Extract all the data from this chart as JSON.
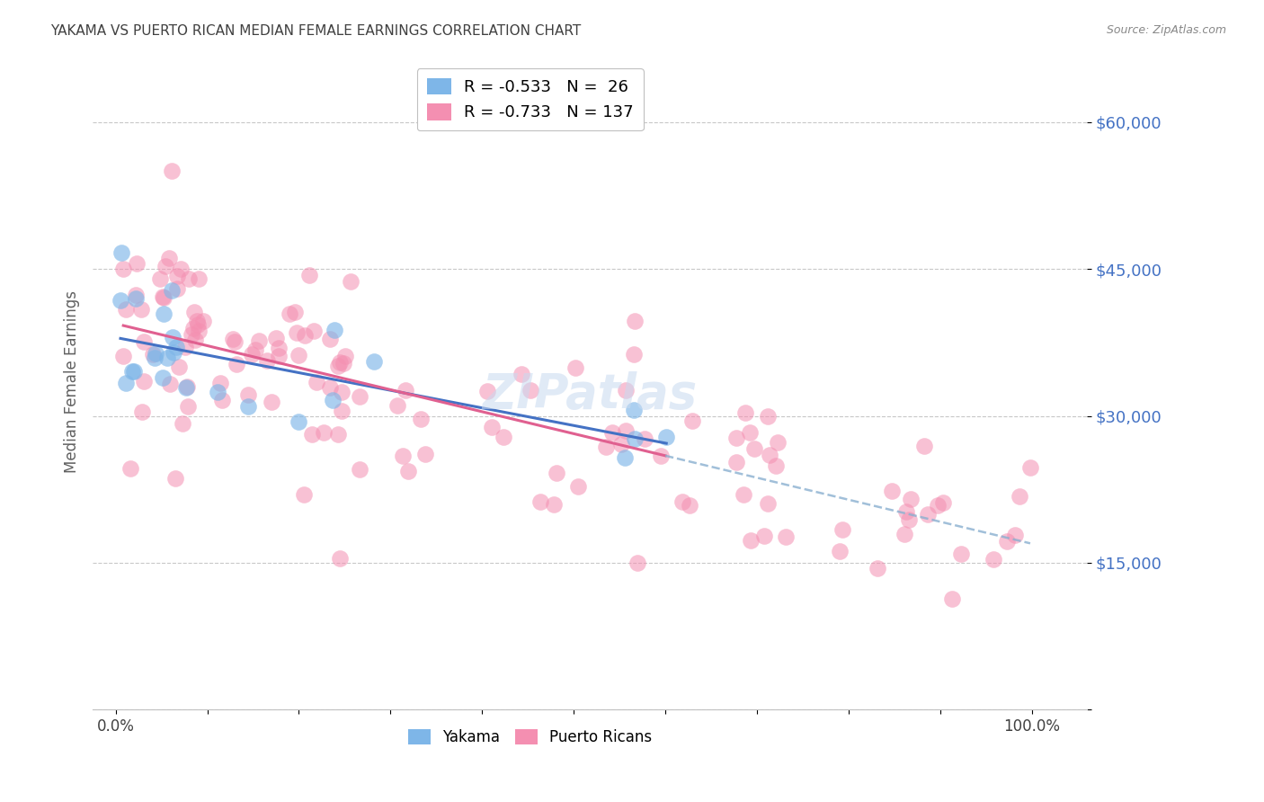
{
  "title": "YAKAMA VS PUERTO RICAN MEDIAN FEMALE EARNINGS CORRELATION CHART",
  "source": "Source: ZipAtlas.com",
  "ylabel": "Median Female Earnings",
  "yticks": [
    0,
    15000,
    30000,
    45000,
    60000
  ],
  "ytick_labels": [
    "",
    "$15,000",
    "$30,000",
    "$45,000",
    "$60,000"
  ],
  "yakama_color": "#7eb6e8",
  "puerto_rican_color": "#f48fb1",
  "trend_yakama_color": "#4472c4",
  "trend_pr_color": "#e06090",
  "trend_dashed_color": "#8ab0d0",
  "watermark": "ZIPatlas",
  "grid_color": "#c8c8c8",
  "background_color": "#ffffff",
  "title_color": "#404040",
  "source_color": "#888888",
  "axis_label_color": "#606060",
  "ytick_color": "#4472c4",
  "title_fontsize": 11,
  "watermark_fontsize": 38,
  "watermark_color": "#c8daf0",
  "watermark_alpha": 0.55
}
